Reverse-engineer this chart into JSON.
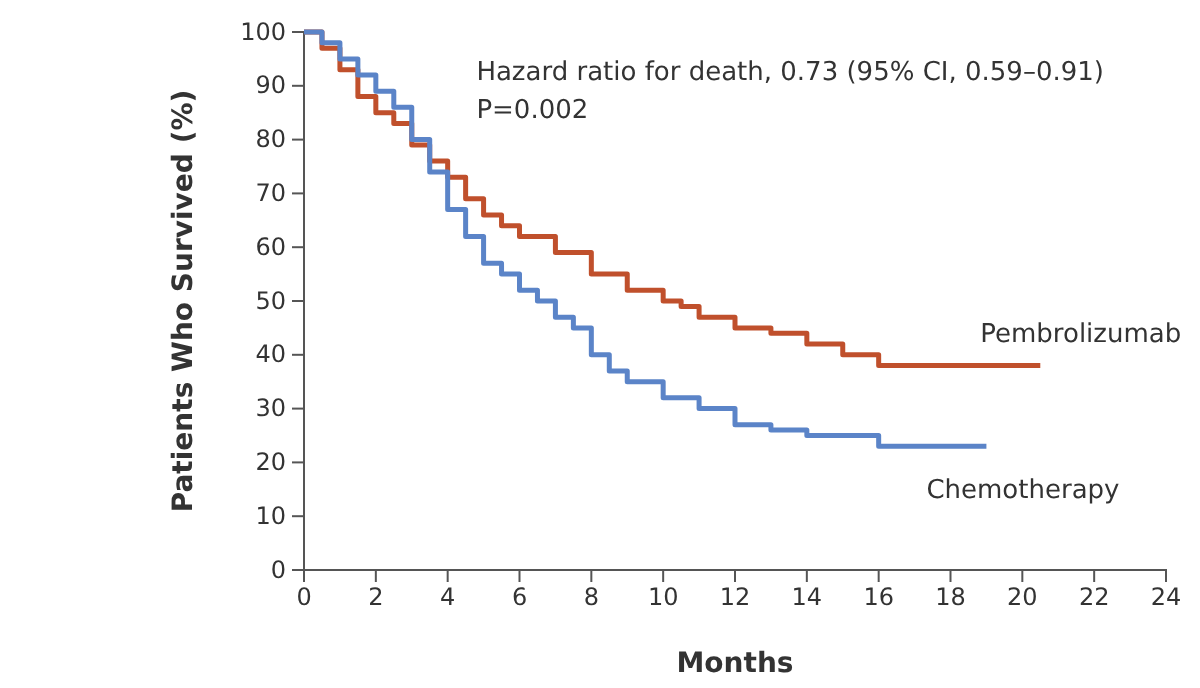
{
  "chart_data": {
    "type": "step",
    "xlabel": "Months",
    "ylabel": "Patients Who Survived (%)",
    "xlim": [
      0,
      24
    ],
    "xticks": [
      0,
      2,
      4,
      6,
      8,
      10,
      12,
      14,
      16,
      18,
      20,
      22,
      24
    ],
    "ylim": [
      0,
      100
    ],
    "yticks": [
      0,
      10,
      20,
      30,
      40,
      50,
      60,
      70,
      80,
      90,
      100
    ],
    "annotations": [
      "Hazard ratio for death, 0.73 (95% CI, 0.59–0.91)",
      "P=0.002"
    ],
    "series": [
      {
        "name": "Pembrolizumab",
        "color": "#c0502c",
        "x": [
          0,
          0.5,
          1,
          1.5,
          2,
          2.5,
          3,
          3.5,
          4,
          4.5,
          5,
          5.5,
          6,
          7,
          8,
          9,
          10,
          10.5,
          11,
          12,
          13,
          14,
          15,
          16,
          17,
          20.5
        ],
        "values": [
          100,
          97,
          93,
          88,
          85,
          83,
          79,
          76,
          73,
          69,
          66,
          64,
          62,
          59,
          55,
          52,
          50,
          49,
          47,
          45,
          44,
          42,
          40,
          38,
          38,
          38
        ]
      },
      {
        "name": "Chemotherapy",
        "color": "#5b84c8",
        "x": [
          0,
          0.5,
          1,
          1.5,
          2,
          2.5,
          3,
          3.5,
          4,
          4.5,
          5,
          5.5,
          6,
          6.5,
          7,
          7.5,
          8,
          8.5,
          9,
          10,
          11,
          12,
          13,
          14,
          15,
          16,
          19
        ],
        "values": [
          100,
          98,
          95,
          92,
          89,
          86,
          80,
          74,
          67,
          62,
          57,
          55,
          52,
          50,
          47,
          45,
          40,
          37,
          35,
          32,
          30,
          27,
          26,
          25,
          25,
          23,
          23
        ]
      }
    ]
  }
}
